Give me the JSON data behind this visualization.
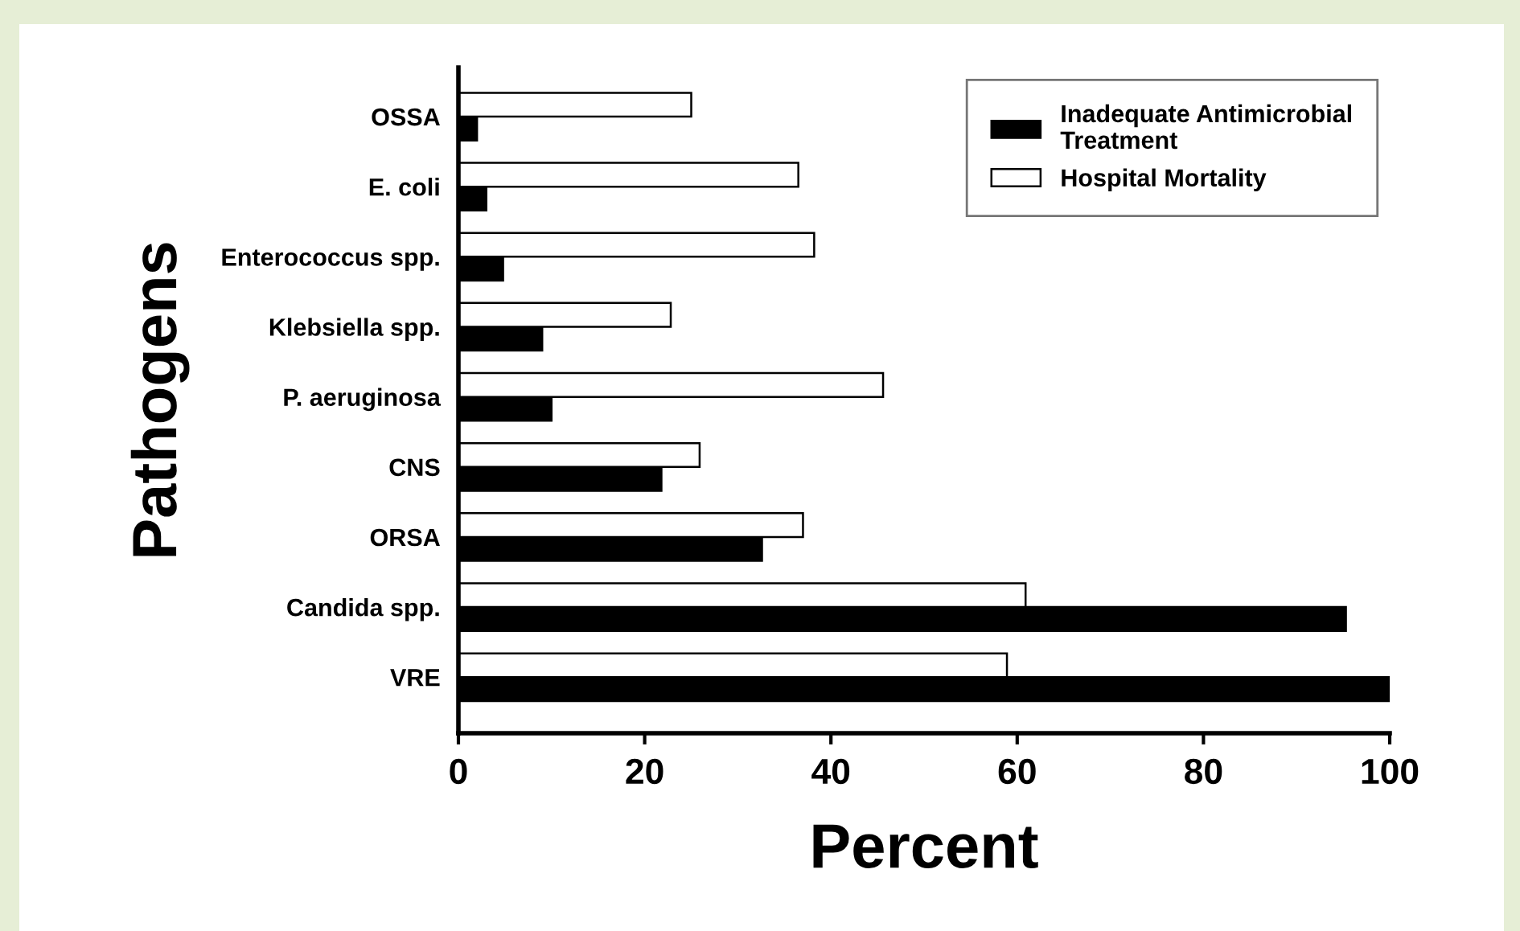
{
  "chart_data": {
    "type": "bar",
    "orientation": "horizontal",
    "xlabel": "Percent",
    "ylabel": "Pathogens",
    "categories": [
      "OSSA",
      "E. coli",
      "Enterococcus spp.",
      "Klebsiella spp.",
      "P. aeruginosa",
      "CNS",
      "ORSA",
      "Candida spp.",
      "VRE"
    ],
    "series": [
      {
        "name": "Inadequate Antimicrobial\nTreatment",
        "color": "#000000",
        "values": [
          2,
          3,
          4.8,
          9,
          10,
          21.8,
          32.6,
          95.3,
          100
        ]
      },
      {
        "name": "Hospital Mortality",
        "color": "#ffffff",
        "values": [
          25,
          36.5,
          38.2,
          22.8,
          45.6,
          25.9,
          37,
          60.9,
          58.9
        ]
      }
    ],
    "xlim": [
      0,
      100
    ],
    "xticks": [
      0,
      20,
      40,
      60,
      80,
      100
    ],
    "grid": false,
    "legend": "top right"
  }
}
